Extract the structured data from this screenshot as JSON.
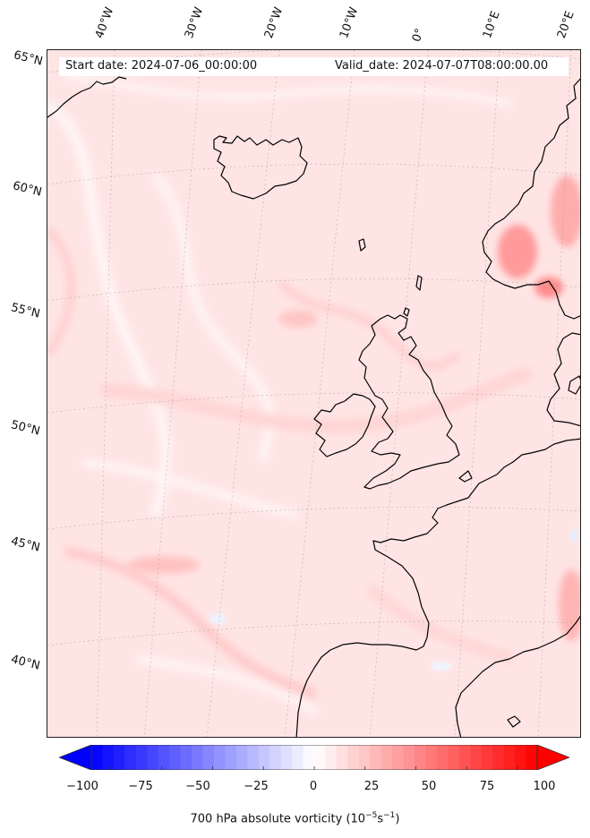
{
  "header": {
    "start_date": "Start date: 2024-07-06_00:00:00",
    "valid_date": "Valid_date: 2024-07-07T08:00:00.00"
  },
  "map": {
    "longitude_labels": [
      "40°W",
      "30°W",
      "20°W",
      "10°W",
      "0°",
      "10°E",
      "20°E"
    ],
    "latitude_labels": [
      "65°N",
      "60°N",
      "55°N",
      "50°N",
      "45°N",
      "40°N"
    ],
    "field": "700 hPa absolute vorticity",
    "colormap": "bwr",
    "colors": {
      "min": "#0000ff",
      "mid": "#ffffff",
      "max": "#ff0000",
      "coast": "#000000",
      "frame": "#222222"
    }
  },
  "colorbar": {
    "ticks": [
      "−100",
      "−75",
      "−50",
      "−25",
      "0",
      "25",
      "50",
      "75",
      "100"
    ],
    "range": [
      -100,
      100
    ],
    "label_prefix": "700 hPa absolute vorticity (10",
    "label_exp1": "−5",
    "label_mid": "s",
    "label_exp2": "−1",
    "label_suffix": ")",
    "extend": "both"
  }
}
